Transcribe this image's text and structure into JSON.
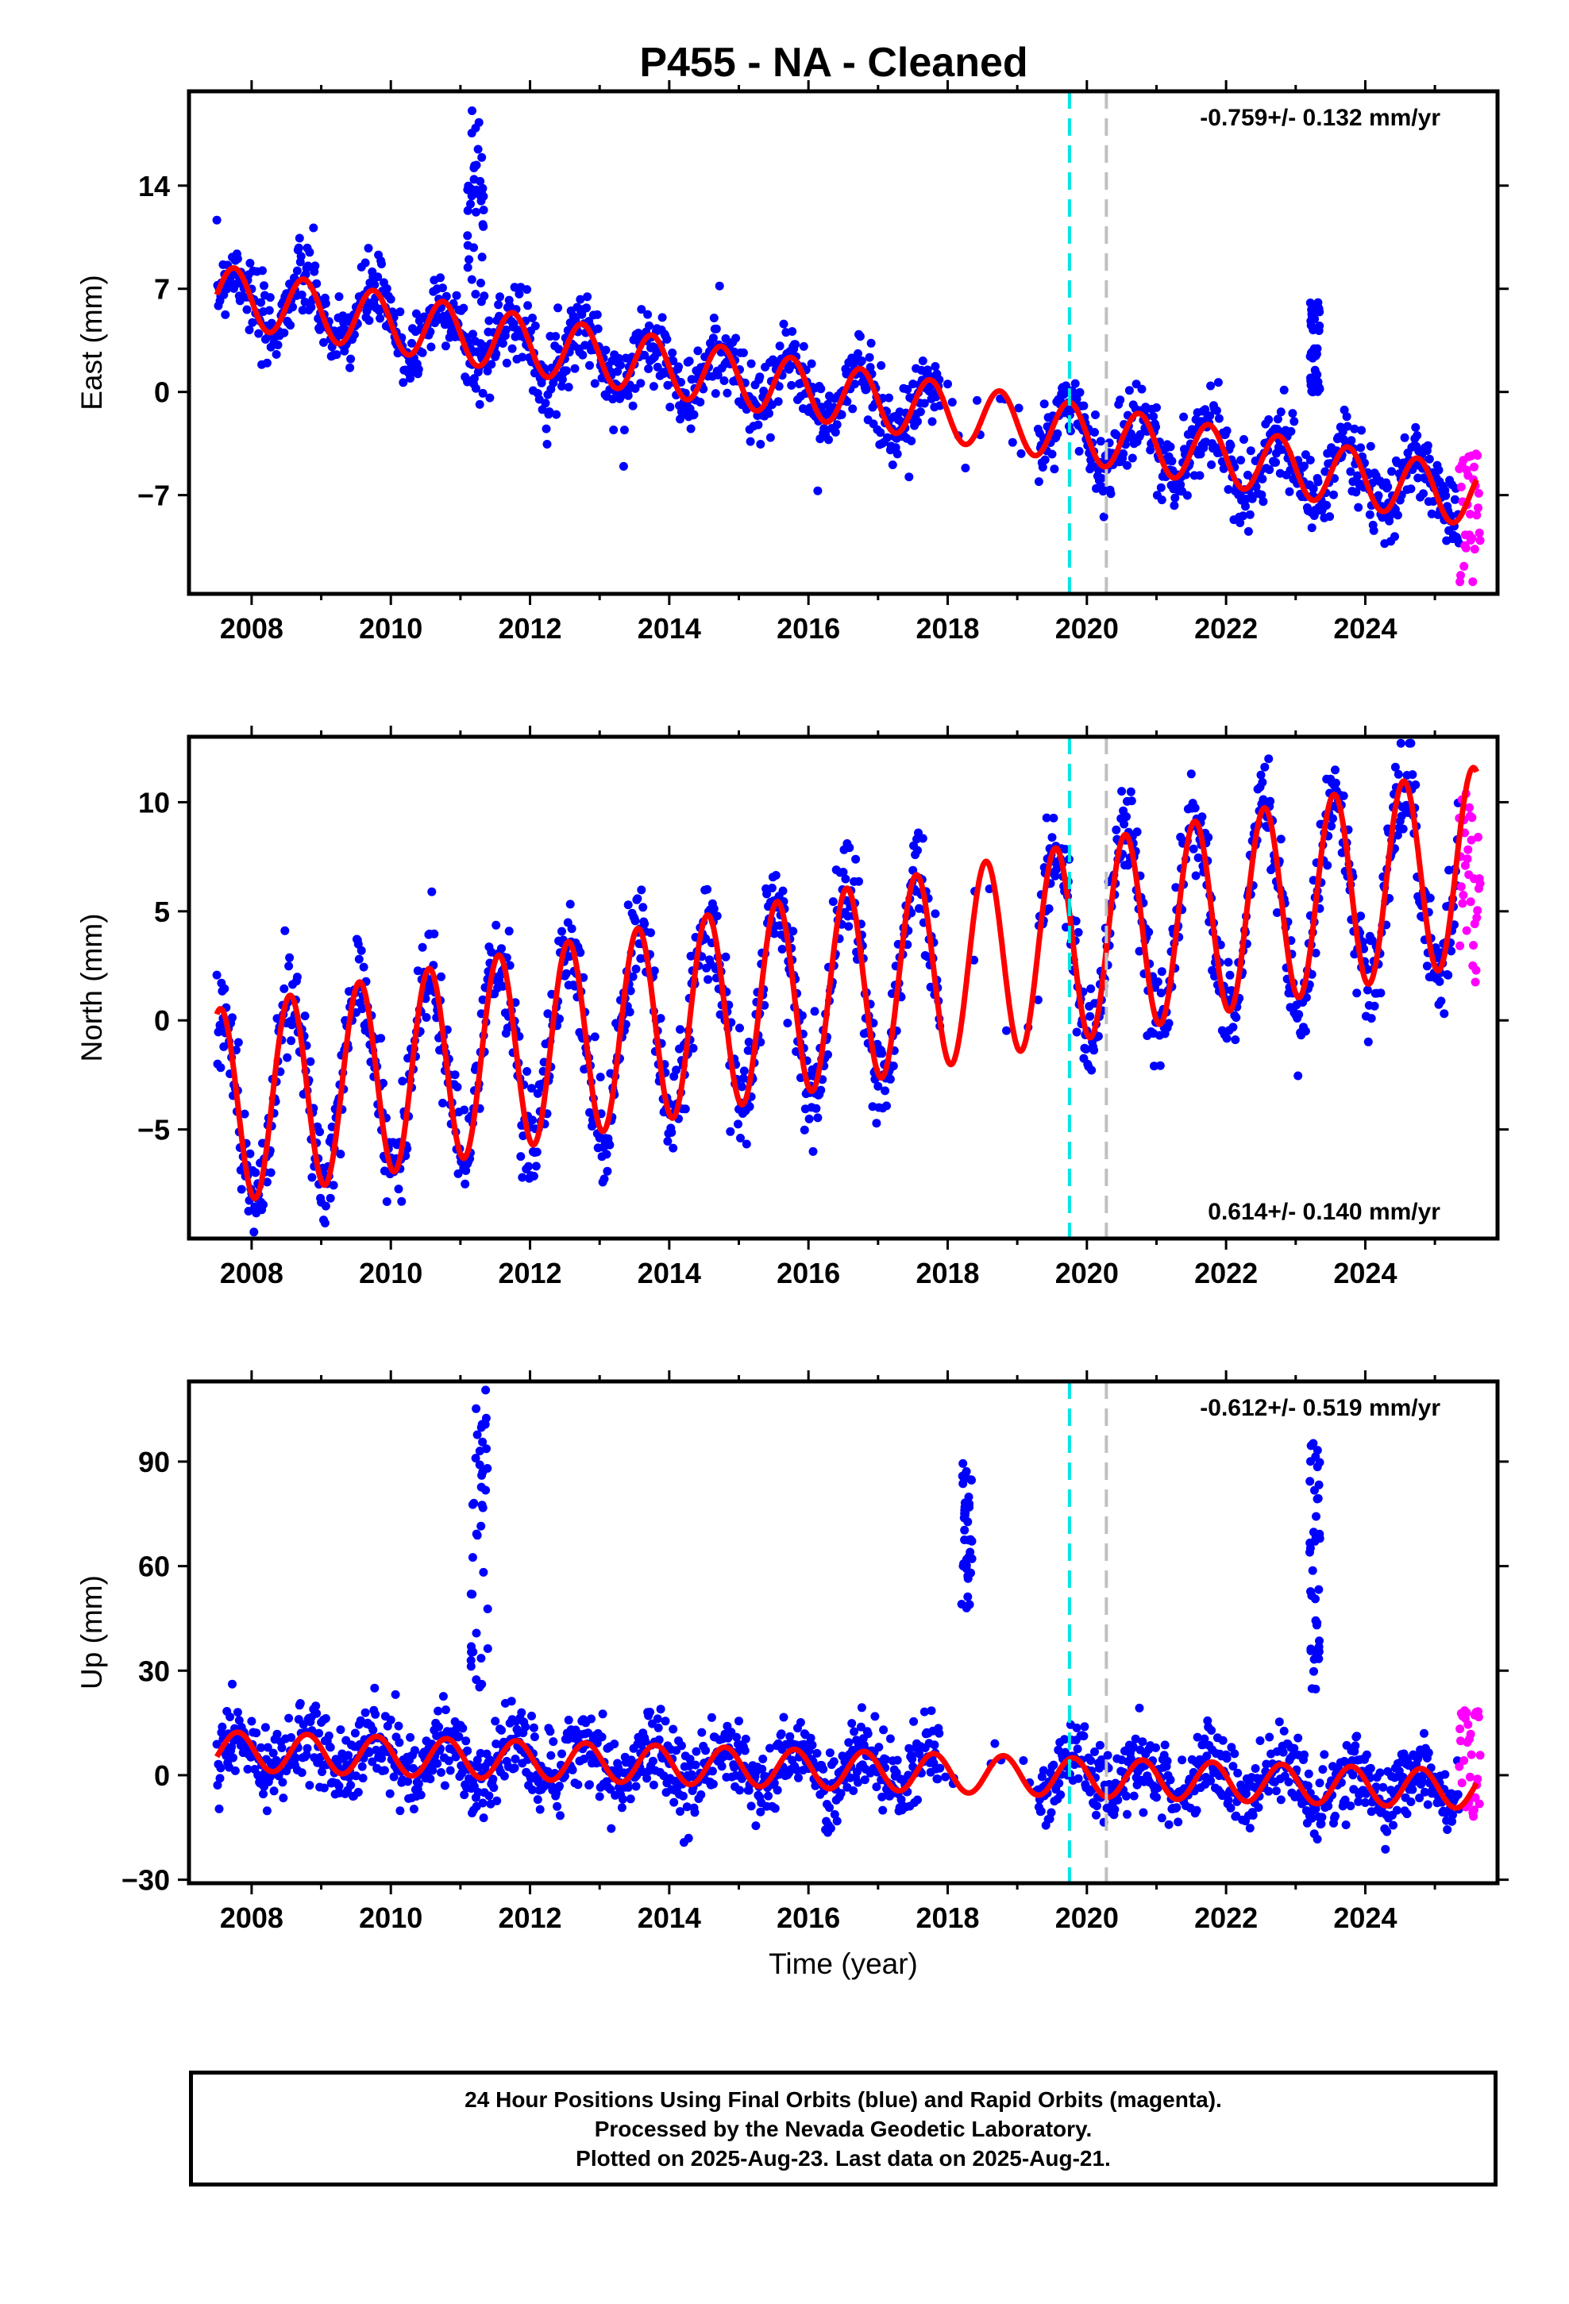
{
  "title": "P455  - NA - Cleaned",
  "colors": {
    "final": "#0000ff",
    "rapid": "#ff00ff",
    "model": "#ff0000",
    "event1": "#00e5e5",
    "event2": "#c0c0c0"
  },
  "footer": {
    "line1": "24 Hour Positions Using Final Orbits (blue) and Rapid Orbits (magenta).",
    "line2": "Processed by the Nevada Geodetic Laboratory.",
    "line3": "Plotted on 2025-Aug-23. Last data on 2025-Aug-21."
  },
  "chart_data": [
    {
      "type": "scatter",
      "component": "east",
      "ylabel": "East (mm)",
      "xlabel": "",
      "rate": "-0.759+/- 0.132 mm/yr",
      "rate_position": "top-right",
      "xlim": [
        2007.1,
        2025.9
      ],
      "ylim": [
        -13.7,
        20.4
      ],
      "xticks": [
        "2008",
        "2010",
        "2012",
        "2014",
        "2016",
        "2018",
        "2020",
        "2022",
        "2024"
      ],
      "yticks": [
        "14",
        "7",
        "0",
        "-7"
      ],
      "event_lines": [
        2019.75,
        2020.28
      ],
      "model": {
        "a": 6.6,
        "rate": -0.759,
        "amp": 2.0,
        "peak_phase": 0.75,
        "start": 2007.5,
        "end": 2025.6
      },
      "scatter_noise": 1.3,
      "gaps": [
        [
          2017.9,
          2019.3
        ]
      ],
      "outlier_clusters": [
        {
          "start": 2011.1,
          "end": 2011.35,
          "low": 6.0,
          "high": 19.7
        },
        {
          "start": 2023.2,
          "end": 2023.35,
          "low": 0.0,
          "high": 6.2
        }
      ],
      "rapid": {
        "start": 2025.35,
        "end": 2025.65,
        "low": -13.0,
        "high": -4.2
      }
    },
    {
      "type": "scatter",
      "component": "north",
      "ylabel": "North (mm)",
      "xlabel": "",
      "rate": "0.614+/- 0.140 mm/yr",
      "rate_position": "bottom-right",
      "xlim": [
        2007.1,
        2025.9
      ],
      "ylim": [
        -10.0,
        13.0
      ],
      "xticks": [
        "2008",
        "2010",
        "2012",
        "2014",
        "2016",
        "2018",
        "2020",
        "2022",
        "2024"
      ],
      "yticks": [
        "10",
        "5",
        "0",
        "-5"
      ],
      "event_lines": [
        2019.75,
        2020.28
      ],
      "model": {
        "a": -4.0,
        "rate": 0.614,
        "amp": 4.5,
        "peak_phase": 0.55,
        "start": 2007.5,
        "end": 2025.6
      },
      "scatter_noise": 1.2,
      "gaps": [
        [
          2017.9,
          2019.3
        ]
      ],
      "outlier_clusters": [],
      "rapid": {
        "start": 2025.35,
        "end": 2025.65,
        "low": 1.7,
        "high": 10.8
      }
    },
    {
      "type": "scatter",
      "component": "up",
      "ylabel": "Up (mm)",
      "xlabel": "Time (year)",
      "rate": "-0.612+/- 0.519 mm/yr",
      "rate_position": "top-right",
      "xlim": [
        2007.1,
        2025.9
      ],
      "ylim": [
        -31.0,
        113.0
      ],
      "xticks": [
        "2008",
        "2010",
        "2012",
        "2014",
        "2016",
        "2018",
        "2020",
        "2022",
        "2024"
      ],
      "yticks": [
        "90",
        "60",
        "30",
        "0",
        "-30"
      ],
      "event_lines": [
        2019.75,
        2020.28
      ],
      "model": {
        "a": 7.0,
        "rate": -0.612,
        "amp": 5.5,
        "peak_phase": 0.8,
        "start": 2007.5,
        "end": 2025.6
      },
      "scatter_noise": 5.5,
      "gaps": [
        [
          2017.9,
          2019.3
        ]
      ],
      "outlier_clusters": [
        {
          "start": 2011.15,
          "end": 2011.4,
          "low": 15.0,
          "high": 111.0
        },
        {
          "start": 2018.2,
          "end": 2018.35,
          "low": 47.0,
          "high": 90.0
        },
        {
          "start": 2023.2,
          "end": 2023.35,
          "low": 20.0,
          "high": 96.0
        }
      ],
      "rapid": {
        "start": 2025.35,
        "end": 2025.65,
        "low": -13.0,
        "high": 20.0
      }
    }
  ]
}
